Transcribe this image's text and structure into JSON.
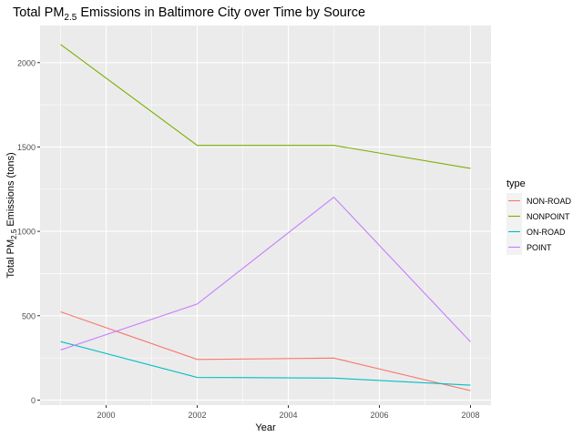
{
  "chart_data": {
    "type": "line",
    "title": {
      "prefix": "Total PM",
      "subscript": "2.5",
      "suffix": " Emissions in Baltimore City over Time by Source"
    },
    "xlabel": "Year",
    "ylabel": {
      "prefix": "Total PM",
      "subscript": "2.5",
      "suffix": " Emissions (tons)"
    },
    "x": [
      1999,
      2002,
      2005,
      2008
    ],
    "xticks": [
      2000,
      2002,
      2004,
      2006,
      2008
    ],
    "xtick_labels": [
      "2000",
      "2002",
      "2004",
      "2006",
      "2008"
    ],
    "yticks": [
      0,
      500,
      1000,
      1500,
      2000
    ],
    "ytick_labels": [
      "0",
      "500",
      "1000",
      "1500",
      "2000"
    ],
    "xlim": [
      1998.55,
      2008.45
    ],
    "ylim": [
      -30,
      2220
    ],
    "grid": true,
    "legend": {
      "title": "type",
      "position": "right"
    },
    "series": [
      {
        "name": "NON-ROAD",
        "color": "#F8766D",
        "values": [
          522.94,
          240.85,
          248.93,
          55.82
        ]
      },
      {
        "name": "NONPOINT",
        "color": "#7CAE00",
        "values": [
          2107.63,
          1509.5,
          1509.5,
          1373.21
        ]
      },
      {
        "name": "ON-ROAD",
        "color": "#00BFC4",
        "values": [
          346.82,
          134.31,
          130.43,
          88.28
        ]
      },
      {
        "name": "POINT",
        "color": "#C77CFF",
        "values": [
          296.8,
          569.26,
          1202.49,
          344.98
        ]
      }
    ]
  }
}
